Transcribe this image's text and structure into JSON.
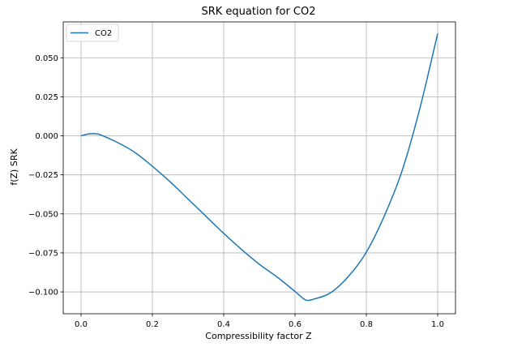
{
  "chart_data": {
    "type": "line",
    "title": "SRK equation for CO2",
    "xlabel": "Compressibility factor Z",
    "ylabel": "f(Z) SRK",
    "xlim": [
      -0.05,
      1.05
    ],
    "ylim": [
      -0.114,
      0.073
    ],
    "xticks": [
      0.0,
      0.2,
      0.4,
      0.6,
      0.8,
      1.0
    ],
    "xtick_labels": [
      "0.0",
      "0.2",
      "0.4",
      "0.6",
      "0.8",
      "1.0"
    ],
    "yticks": [
      -0.1,
      -0.075,
      -0.05,
      -0.025,
      0.0,
      0.025,
      0.05
    ],
    "ytick_labels": [
      "−0.100",
      "−0.075",
      "−0.050",
      "−0.025",
      "0.000",
      "0.025",
      "0.050"
    ],
    "grid": true,
    "legend_position": "top-left",
    "series": [
      {
        "name": "CO2",
        "color": "#1f77b4",
        "x": [
          0.0,
          0.02,
          0.035,
          0.05,
          0.1,
          0.15,
          0.2,
          0.25,
          0.3,
          0.35,
          0.4,
          0.45,
          0.5,
          0.55,
          0.6,
          0.63,
          0.65,
          0.7,
          0.75,
          0.8,
          0.85,
          0.9,
          0.95,
          1.0
        ],
        "y": [
          0.0,
          0.0012,
          0.0014,
          0.001,
          -0.004,
          -0.0105,
          -0.0195,
          -0.0295,
          -0.0405,
          -0.0515,
          -0.0625,
          -0.0728,
          -0.0823,
          -0.0905,
          -0.0997,
          -0.1052,
          -0.1048,
          -0.1005,
          -0.09,
          -0.0745,
          -0.0515,
          -0.0225,
          0.0175,
          0.0655
        ]
      }
    ]
  }
}
